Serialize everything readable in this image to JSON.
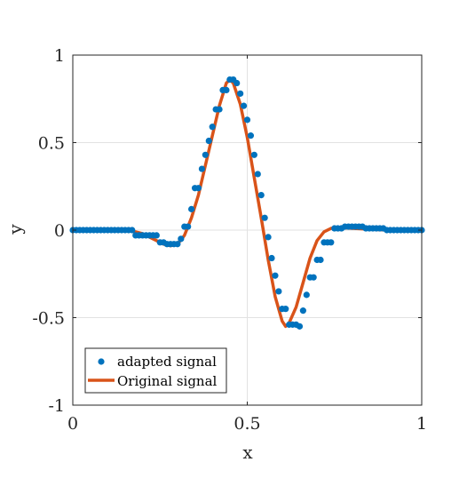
{
  "chart_data": {
    "type": "line",
    "xlabel": "x",
    "ylabel": "y",
    "xlim": [
      0,
      1
    ],
    "ylim": [
      -1,
      1
    ],
    "xticks": [
      0,
      0.5,
      1
    ],
    "xtick_labels": [
      "0",
      "0.5",
      "1"
    ],
    "yticks": [
      -1,
      -0.5,
      0,
      0.5,
      1
    ],
    "ytick_labels": [
      "-1",
      "-0.5",
      "0",
      "0.5",
      "1"
    ],
    "grid": true,
    "legend_position": "bottom-left",
    "series": [
      {
        "name": "adapted signal",
        "style": "markers",
        "color": "#0072BD",
        "x": [
          0.0,
          0.01,
          0.02,
          0.03,
          0.04,
          0.05,
          0.06,
          0.07,
          0.08,
          0.09,
          0.1,
          0.11,
          0.12,
          0.13,
          0.14,
          0.15,
          0.16,
          0.17,
          0.18,
          0.19,
          0.2,
          0.21,
          0.22,
          0.23,
          0.24,
          0.25,
          0.26,
          0.27,
          0.28,
          0.29,
          0.3,
          0.31,
          0.32,
          0.33,
          0.34,
          0.35,
          0.36,
          0.37,
          0.38,
          0.39,
          0.4,
          0.41,
          0.42,
          0.43,
          0.44,
          0.45,
          0.46,
          0.47,
          0.48,
          0.49,
          0.5,
          0.51,
          0.52,
          0.53,
          0.54,
          0.55,
          0.56,
          0.57,
          0.58,
          0.59,
          0.6,
          0.61,
          0.62,
          0.63,
          0.64,
          0.65,
          0.66,
          0.67,
          0.68,
          0.69,
          0.7,
          0.71,
          0.72,
          0.73,
          0.74,
          0.75,
          0.76,
          0.77,
          0.78,
          0.79,
          0.8,
          0.81,
          0.82,
          0.83,
          0.84,
          0.85,
          0.86,
          0.87,
          0.88,
          0.89,
          0.9,
          0.91,
          0.92,
          0.93,
          0.94,
          0.95,
          0.96,
          0.97,
          0.98,
          0.99,
          1.0
        ],
        "y": [
          0,
          0,
          0,
          0,
          0,
          0,
          0,
          0,
          0,
          0,
          0,
          0,
          0,
          0,
          0,
          0,
          0,
          0,
          -0.03,
          -0.03,
          -0.03,
          -0.03,
          -0.03,
          -0.03,
          -0.03,
          -0.07,
          -0.07,
          -0.08,
          -0.08,
          -0.08,
          -0.08,
          -0.05,
          0.02,
          0.02,
          0.12,
          0.24,
          0.24,
          0.35,
          0.43,
          0.51,
          0.59,
          0.69,
          0.69,
          0.8,
          0.8,
          0.86,
          0.86,
          0.84,
          0.78,
          0.71,
          0.63,
          0.54,
          0.43,
          0.32,
          0.2,
          0.07,
          -0.04,
          -0.16,
          -0.26,
          -0.35,
          -0.45,
          -0.45,
          -0.54,
          -0.54,
          -0.54,
          -0.55,
          -0.46,
          -0.37,
          -0.27,
          -0.27,
          -0.17,
          -0.17,
          -0.07,
          -0.07,
          -0.07,
          0.01,
          0.01,
          0.01,
          0.02,
          0.02,
          0.02,
          0.02,
          0.02,
          0.02,
          0.01,
          0.01,
          0.01,
          0.01,
          0.01,
          0.01,
          0,
          0,
          0,
          0,
          0,
          0,
          0,
          0,
          0,
          0,
          0
        ]
      },
      {
        "name": "Original signal",
        "style": "line",
        "color": "#D95319",
        "x": [
          0.0,
          0.05,
          0.1,
          0.15,
          0.18,
          0.2,
          0.22,
          0.24,
          0.26,
          0.28,
          0.3,
          0.32,
          0.34,
          0.36,
          0.38,
          0.4,
          0.42,
          0.44,
          0.45,
          0.46,
          0.48,
          0.5,
          0.52,
          0.54,
          0.56,
          0.58,
          0.6,
          0.61,
          0.62,
          0.64,
          0.66,
          0.68,
          0.7,
          0.72,
          0.74,
          0.76,
          0.8,
          0.85,
          0.9,
          1.0
        ],
        "y": [
          0,
          0,
          0,
          0,
          -0.01,
          -0.02,
          -0.04,
          -0.06,
          -0.08,
          -0.09,
          -0.08,
          -0.03,
          0.07,
          0.2,
          0.37,
          0.54,
          0.71,
          0.84,
          0.86,
          0.84,
          0.72,
          0.53,
          0.3,
          0.07,
          -0.17,
          -0.38,
          -0.52,
          -0.55,
          -0.53,
          -0.44,
          -0.3,
          -0.16,
          -0.06,
          -0.01,
          0.01,
          0.015,
          0.01,
          0.005,
          0,
          0
        ]
      }
    ]
  }
}
